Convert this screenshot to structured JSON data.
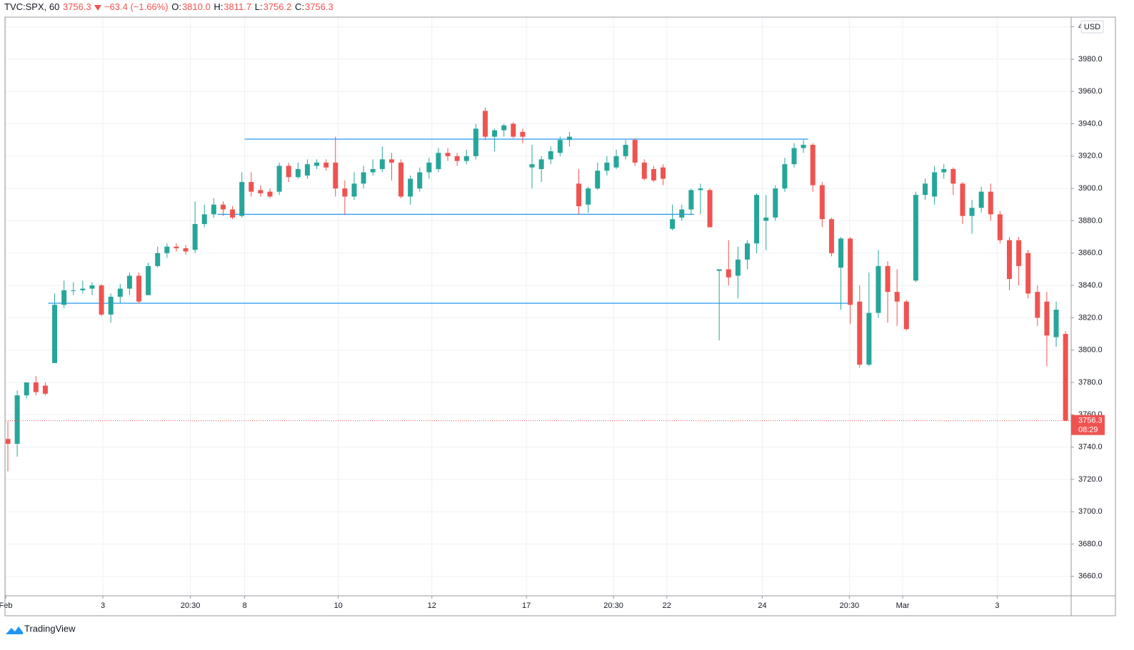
{
  "chart_data": {
    "type": "candlestick",
    "header": {
      "symbol": "TVC:SPX, 60",
      "last": "3756.3",
      "change": "−63.4 (−1.66%)",
      "o_label": "O:",
      "open": "3810.0",
      "h_label": "H:",
      "high": "3811.7",
      "l_label": "L:",
      "low": "3756.2",
      "c_label": "C:",
      "close": "3756.3"
    },
    "currency": "USD",
    "brand": "TradingView",
    "countdown": "08:29",
    "up_color": "#26a69a",
    "down_color": "#ef5350",
    "level_color": "#2196f3",
    "grid": true,
    "open": [
      3745,
      3742,
      3772,
      3780,
      3778,
      3792,
      3828,
      3837,
      3837,
      3838,
      3840,
      3822,
      3833,
      3838,
      3846,
      3834,
      3852,
      3860,
      3864,
      3863,
      3862,
      3878,
      3884,
      3890,
      3887,
      3883,
      3904,
      3899,
      3898,
      3898,
      3914,
      3907,
      3908,
      3914,
      3916,
      3916,
      3900,
      3895,
      3903,
      3910,
      3912,
      3918,
      3916,
      3895,
      3900,
      3910,
      3912,
      3922,
      3920,
      3917,
      3920,
      3948,
      3932,
      3936,
      3940,
      3935,
      3913,
      3912,
      3918,
      3922,
      3930,
      3903,
      3890,
      3900,
      3911,
      3913,
      3920,
      3930,
      3916,
      3912,
      3913,
      3875,
      3882,
      3887,
      3899,
      3899,
      3849,
      3850,
      3846,
      3856,
      3866,
      3880,
      3882,
      3900,
      3915,
      3925,
      3927,
      3902,
      3881,
      3851,
      3869,
      3830,
      3791,
      3823,
      3852,
      3836,
      3830,
      3843,
      3896,
      3895,
      3910,
      3912,
      3903,
      3883,
      3888,
      3898,
      3884,
      3868,
      3868,
      3860,
      3836,
      3830,
      3808,
      3810
    ],
    "high": [
      3756,
      3775,
      3780,
      3784,
      3780,
      3835,
      3843,
      3842,
      3843,
      3842,
      3841,
      3835,
      3841,
      3848,
      3848,
      3854,
      3864,
      3866,
      3866,
      3865,
      3892,
      3890,
      3894,
      3892,
      3889,
      3910,
      3910,
      3902,
      3900,
      3916,
      3916,
      3916,
      3918,
      3918,
      3918,
      3932,
      3905,
      3910,
      3914,
      3918,
      3926,
      3922,
      3918,
      3908,
      3913,
      3919,
      3925,
      3925,
      3922,
      3924,
      3940,
      3950,
      3937,
      3940,
      3941,
      3937,
      3927,
      3920,
      3926,
      3932,
      3935,
      3912,
      3901,
      3916,
      3920,
      3924,
      3930,
      3931,
      3918,
      3914,
      3915,
      3890,
      3890,
      3900,
      3903,
      3900,
      3850,
      3868,
      3864,
      3868,
      3897,
      3896,
      3902,
      3919,
      3928,
      3930,
      3928,
      3904,
      3882,
      3870,
      3870,
      3840,
      3848,
      3862,
      3855,
      3850,
      3831,
      3898,
      3906,
      3914,
      3915,
      3913,
      3904,
      3893,
      3901,
      3903,
      3886,
      3870,
      3870,
      3862,
      3840,
      3836,
      3830,
      3811.7
    ],
    "low": [
      3725,
      3734,
      3770,
      3772,
      3772,
      3792,
      3826,
      3834,
      3835,
      3834,
      3821,
      3817,
      3829,
      3834,
      3829,
      3834,
      3851,
      3857,
      3861,
      3859,
      3860,
      3876,
      3882,
      3883,
      3881,
      3882,
      3895,
      3895,
      3894,
      3896,
      3904,
      3906,
      3906,
      3912,
      3911,
      3895,
      3884,
      3893,
      3900,
      3908,
      3910,
      3905,
      3894,
      3890,
      3898,
      3906,
      3910,
      3917,
      3914,
      3915,
      3918,
      3930,
      3923,
      3932,
      3931,
      3928,
      3900,
      3904,
      3915,
      3920,
      3926,
      3884,
      3885,
      3899,
      3908,
      3912,
      3918,
      3914,
      3905,
      3904,
      3902,
      3874,
      3880,
      3884,
      3884,
      3876,
      3806,
      3840,
      3832,
      3850,
      3860,
      3862,
      3880,
      3898,
      3913,
      3922,
      3898,
      3876,
      3858,
      3825,
      3816,
      3789,
      3790,
      3820,
      3817,
      3815,
      3812,
      3842,
      3893,
      3890,
      3906,
      3896,
      3878,
      3872,
      3885,
      3880,
      3866,
      3837,
      3840,
      3832,
      3815,
      3790,
      3802,
      3756.2
    ],
    "close": [
      3742,
      3772,
      3780,
      3774,
      3773,
      3828,
      3837,
      3837,
      3838,
      3840,
      3822,
      3833,
      3838,
      3846,
      3830,
      3852,
      3860,
      3864,
      3863,
      3861,
      3878,
      3884,
      3890,
      3887,
      3882,
      3904,
      3898,
      3897,
      3895,
      3914,
      3907,
      3912,
      3915,
      3916,
      3913,
      3900,
      3895,
      3903,
      3910,
      3912,
      3918,
      3916,
      3895,
      3906,
      3910,
      3916,
      3922,
      3920,
      3917,
      3920,
      3937,
      3932,
      3936,
      3939,
      3932,
      3932,
      3915,
      3918,
      3923,
      3930,
      3932,
      3889,
      3900,
      3911,
      3916,
      3920,
      3927,
      3916,
      3906,
      3905,
      3906,
      3881,
      3887,
      3899,
      3900,
      3876,
      3850,
      3845,
      3856,
      3866,
      3896,
      3882,
      3900,
      3915,
      3925,
      3927,
      3902,
      3881,
      3860,
      3869,
      3828,
      3791,
      3823,
      3852,
      3836,
      3830,
      3813,
      3896,
      3903,
      3910,
      3912,
      3903,
      3883,
      3888,
      3898,
      3884,
      3868,
      3844,
      3852,
      3835,
      3820,
      3809,
      3825,
      3756.3
    ],
    "last_price": 3756.3,
    "levels": [
      {
        "value": 3930.5,
        "from": 25.3,
        "to": 85.5
      },
      {
        "value": 3884,
        "from": 22.4,
        "to": 73.3
      },
      {
        "value": 3829,
        "from": 4.3,
        "to": 90
      }
    ],
    "xlim": [
      -0.23,
      113.6
    ],
    "xticks": [
      {
        "value": -0.23,
        "label": "Feb"
      },
      {
        "value": 10.15,
        "label": "3"
      },
      {
        "value": 19.5,
        "label": "20:30"
      },
      {
        "value": 25.3,
        "label": "8"
      },
      {
        "value": 35.3,
        "label": "10"
      },
      {
        "value": 45.3,
        "label": "12"
      },
      {
        "value": 55.4,
        "label": "17"
      },
      {
        "value": 64.7,
        "label": "20:30"
      },
      {
        "value": 70.4,
        "label": "22"
      },
      {
        "value": 80.6,
        "label": "24"
      },
      {
        "value": 89.9,
        "label": "20:30"
      },
      {
        "value": 95.6,
        "label": "Mar"
      },
      {
        "value": 105.7,
        "label": "3"
      }
    ],
    "ylim": [
      3648,
      4006
    ],
    "yticks": [
      {
        "value": 3660,
        "label": "3660.0"
      },
      {
        "value": 3680,
        "label": "3680.0"
      },
      {
        "value": 3700,
        "label": "3700.0"
      },
      {
        "value": 3720,
        "label": "3720.0"
      },
      {
        "value": 3740,
        "label": "3740.0"
      },
      {
        "value": 3760,
        "label": "3760.0"
      },
      {
        "value": 3780,
        "label": "3780.0"
      },
      {
        "value": 3800,
        "label": "3800.0"
      },
      {
        "value": 3820,
        "label": "3820.0"
      },
      {
        "value": 3840,
        "label": "3840.0"
      },
      {
        "value": 3860,
        "label": "3860.0"
      },
      {
        "value": 3880,
        "label": "3880.0"
      },
      {
        "value": 3900,
        "label": "3900.0"
      },
      {
        "value": 3920,
        "label": "3920.0"
      },
      {
        "value": 3940,
        "label": "3940.0"
      },
      {
        "value": 3960,
        "label": "3960.0"
      },
      {
        "value": 3980,
        "label": "3980.0"
      },
      {
        "value": 4000,
        "label": "4000.0"
      }
    ]
  }
}
